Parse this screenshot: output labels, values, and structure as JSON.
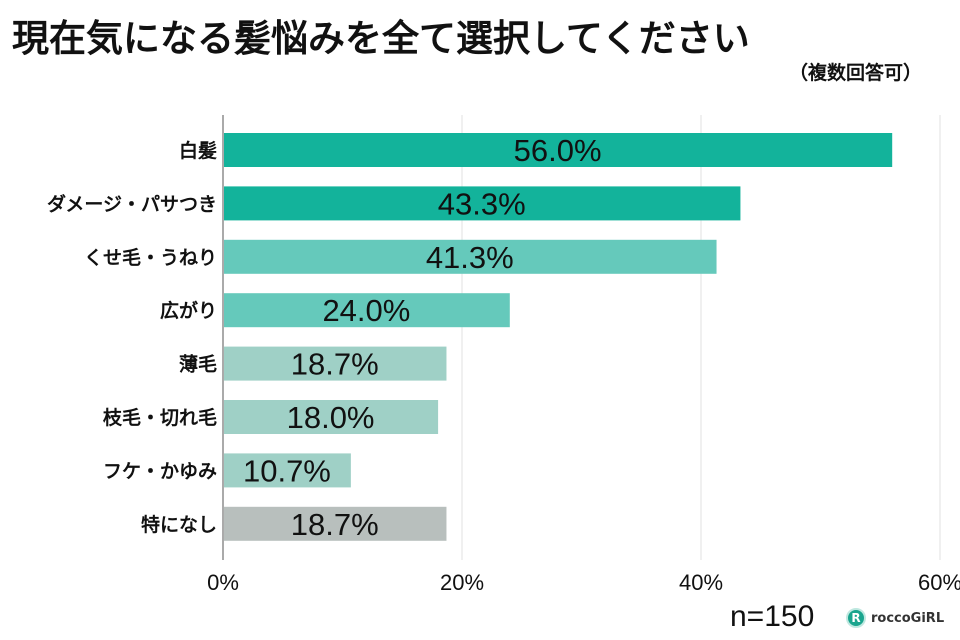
{
  "title": "現在気になる髪悩みを全て選択してください",
  "subtitle": "（複数回答可）",
  "sample_size": "n=150",
  "logo_text": "roccoGiRL",
  "chart_data": {
    "type": "bar",
    "orientation": "horizontal",
    "categories": [
      "白髪",
      "ダメージ・パサつき",
      "くせ毛・うねり",
      "広がり",
      "薄毛",
      "枝毛・切れ毛",
      "フケ・かゆみ",
      "特になし"
    ],
    "values": [
      56.0,
      43.3,
      41.3,
      24.0,
      18.7,
      18.0,
      10.7,
      18.7
    ],
    "data_labels": [
      "56.0%",
      "43.3%",
      "41.3%",
      "24.0%",
      "18.7%",
      "18.0%",
      "10.7%",
      "18.7%"
    ],
    "colors": [
      "#13b39b",
      "#13b39b",
      "#65c9bb",
      "#65c9bb",
      "#9fd0c6",
      "#9fd0c6",
      "#9fd0c6",
      "#b8bfbd"
    ],
    "xlim": [
      0,
      60
    ],
    "xticks": [
      0,
      20,
      40,
      60
    ],
    "xtick_labels": [
      "0%",
      "20%",
      "40%",
      "60%"
    ],
    "grid": true
  }
}
